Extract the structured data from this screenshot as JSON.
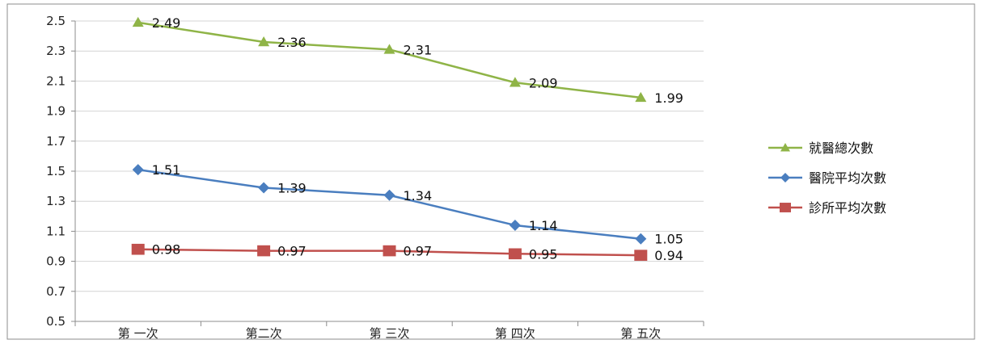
{
  "chart_data": {
    "type": "line",
    "categories": [
      "第 一次",
      "第二次",
      "第 三次",
      "第 四次",
      "第 五次"
    ],
    "series": [
      {
        "name": "就醫總次數",
        "values": [
          2.49,
          2.36,
          2.31,
          2.09,
          1.99
        ],
        "color": "#8fb447",
        "marker": "triangle",
        "labels": [
          "2.49",
          "2.36",
          "2.31",
          "2.09",
          "1.99"
        ]
      },
      {
        "name": "醫院平均次數",
        "values": [
          1.51,
          1.39,
          1.34,
          1.14,
          1.05
        ],
        "color": "#4a7ebf",
        "marker": "diamond",
        "labels": [
          "1.51",
          "1.39",
          "1.34",
          "1.14",
          "1.05"
        ]
      },
      {
        "name": "診所平均次數",
        "values": [
          0.98,
          0.97,
          0.97,
          0.95,
          0.94
        ],
        "color": "#c0504d",
        "marker": "square",
        "labels": [
          "0.98",
          "0.97",
          "0.97",
          "0.95",
          "0.94"
        ]
      }
    ],
    "ylim": [
      0.5,
      2.5
    ],
    "yticks": [
      "0.5",
      "0.7",
      "0.9",
      "1.1",
      "1.3",
      "1.5",
      "1.7",
      "1.9",
      "2.1",
      "2.3",
      "2.5"
    ],
    "grid": true,
    "legend": "right"
  }
}
